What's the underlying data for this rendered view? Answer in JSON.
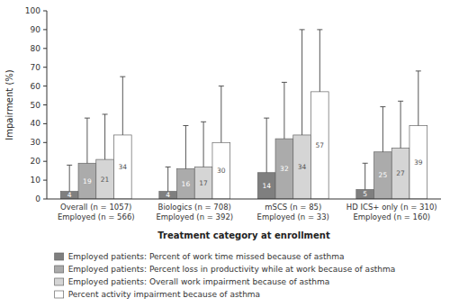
{
  "chart_data": {
    "type": "bar",
    "categories": [
      "Overall (n = 1057)\nEmployed (n = 566)",
      "Biologics (n = 708)\nEmployed (n = 392)",
      "mSCS (n = 85)\nEmployed (n = 33)",
      "HD ICS+ only (n = 310)\nEmployed (n = 160)"
    ],
    "series": [
      {
        "name": "Employed patients: Percent of work time missed because of asthma",
        "color": "#7f7f7f",
        "values": [
          4,
          4,
          14,
          5
        ],
        "errors_upper": [
          14,
          13,
          29,
          14
        ]
      },
      {
        "name": "Employed patients: Percent loss in productivity while at work because of asthma",
        "color": "#ababab",
        "values": [
          19,
          16,
          32,
          25
        ],
        "errors_upper": [
          24,
          23,
          30,
          24
        ]
      },
      {
        "name": "Employed patients: Overall work impairment because of asthma",
        "color": "#d5d5d5",
        "values": [
          21,
          17,
          34,
          27
        ],
        "errors_upper": [
          24,
          24,
          56,
          25
        ]
      },
      {
        "name": "Percent activity impairment because of asthma",
        "color": "#ffffff",
        "values": [
          34,
          30,
          57,
          39
        ],
        "errors_upper": [
          31,
          30,
          33,
          29
        ]
      }
    ],
    "ylim": [
      0,
      100
    ],
    "yticks": [
      0,
      10,
      20,
      30,
      40,
      50,
      60,
      70,
      80,
      90,
      100
    ],
    "ylabel": "Impairment (%)",
    "xlabel": "Treatment category at enrollment",
    "data_labels": true,
    "grid": false,
    "legend": "bottom"
  }
}
